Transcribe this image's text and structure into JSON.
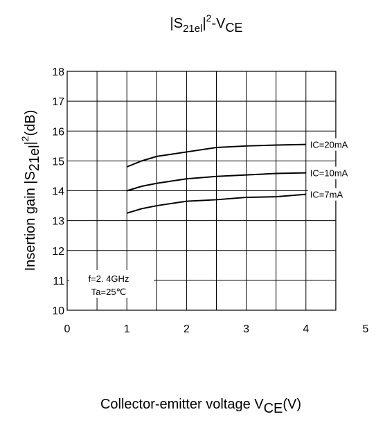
{
  "chart_data": {
    "type": "line",
    "title": {
      "a": "|S",
      "b": "21el",
      "c": "|",
      "d": "2",
      "e": "-V",
      "f": "CE"
    },
    "y_label": {
      "a": "Insertion gain |S",
      "b": "21el",
      "c": "|",
      "d": "2",
      "e": "(dB)"
    },
    "x_label": {
      "a": "Collector-emitter voltage V",
      "b": "CE",
      "c": "(V)"
    },
    "annotations": [
      "f=2. 4GHz",
      "Ta=25℃"
    ],
    "xlim": [
      0,
      5
    ],
    "xticks": [
      0,
      1,
      2,
      3,
      4,
      5
    ],
    "ylim": [
      10,
      18
    ],
    "yticks": [
      10,
      11,
      12,
      13,
      14,
      15,
      16,
      17,
      18
    ],
    "grid": true,
    "x": [
      1,
      1.25,
      1.5,
      2,
      2.5,
      3,
      3.5,
      4
    ],
    "series": [
      {
        "name": "IC=20mA",
        "color": "#000000",
        "values": [
          14.8,
          15.0,
          15.15,
          15.3,
          15.45,
          15.5,
          15.53,
          15.55
        ]
      },
      {
        "name": "IC=10mA",
        "color": "#000000",
        "values": [
          14.0,
          14.15,
          14.25,
          14.4,
          14.48,
          14.53,
          14.58,
          14.6
        ]
      },
      {
        "name": "IC=7mA",
        "color": "#000000",
        "values": [
          13.25,
          13.4,
          13.5,
          13.65,
          13.7,
          13.78,
          13.8,
          13.88
        ]
      }
    ]
  }
}
